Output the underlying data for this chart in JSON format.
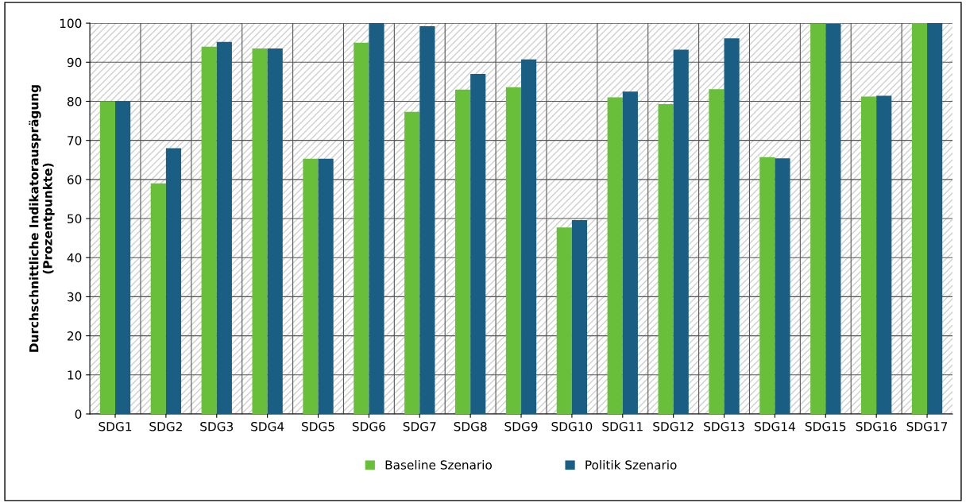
{
  "chart_data": {
    "type": "bar",
    "ylabel": "Durchschnittliche Indikatorausprägung\n(Prozentpunkte)",
    "categories": [
      "SDG1",
      "SDG2",
      "SDG3",
      "SDG4",
      "SDG5",
      "SDG6",
      "SDG7",
      "SDG8",
      "SDG9",
      "SDG10",
      "SDG11",
      "SDG12",
      "SDG13",
      "SDG14",
      "SDG15",
      "SDG16",
      "SDG17"
    ],
    "series": [
      {
        "name": "Baseline Szenario",
        "color": "#6abf3a",
        "values": [
          80,
          59,
          94,
          93.5,
          65.3,
          95,
          77.3,
          83,
          83.6,
          47.7,
          81,
          79.3,
          83.1,
          65.7,
          99.8,
          81.2,
          100
        ]
      },
      {
        "name": "Politik Szenario",
        "color": "#1a5e84",
        "values": [
          80,
          68,
          95.2,
          93.5,
          65.3,
          100,
          99.2,
          87,
          90.7,
          49.6,
          82.5,
          93.2,
          96.1,
          65.4,
          99.8,
          81.4,
          100
        ]
      }
    ],
    "ylim": [
      0,
      100
    ],
    "yticks": [
      0,
      10,
      20,
      30,
      40,
      50,
      60,
      70,
      80,
      90,
      100
    ],
    "grid": true,
    "legend": "bottom"
  }
}
